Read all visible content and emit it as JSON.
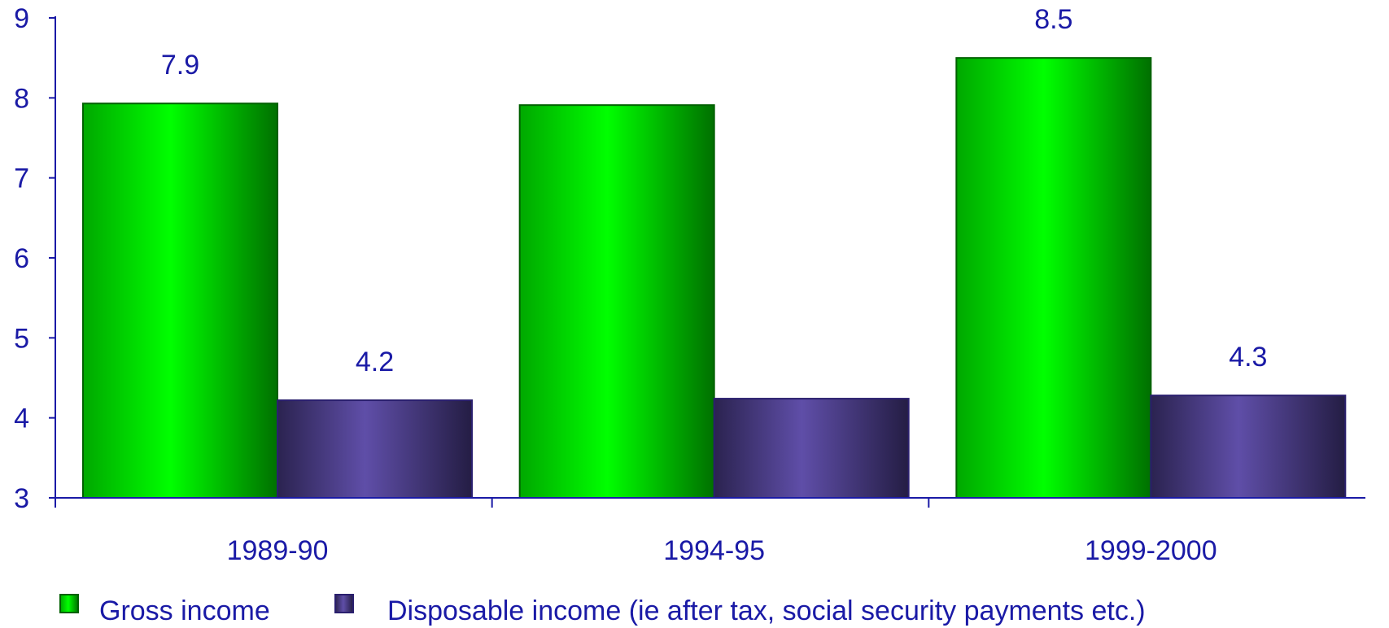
{
  "chart_data": {
    "type": "bar",
    "categories": [
      "1989-90",
      "1994-95",
      "1999-2000"
    ],
    "series": [
      {
        "name": "Gross income",
        "values": [
          7.93,
          7.91,
          8.5
        ],
        "data_labels": [
          "7.9",
          "",
          "8.5"
        ],
        "color": "#00e000"
      },
      {
        "name": "Disposable income (ie after tax, social security payments etc.)",
        "values": [
          4.22,
          4.24,
          4.28
        ],
        "data_labels": [
          "4.2",
          "",
          "4.3"
        ],
        "color": "#5b4a9e"
      }
    ],
    "y_ticks": [
      "3",
      "4",
      "5",
      "6",
      "7",
      "8",
      "9"
    ],
    "ylim": [
      3,
      9
    ],
    "title": "",
    "xlabel": "",
    "ylabel": "",
    "grid": false,
    "legend_position": "bottom",
    "axis_color": "#1a1aa6"
  }
}
